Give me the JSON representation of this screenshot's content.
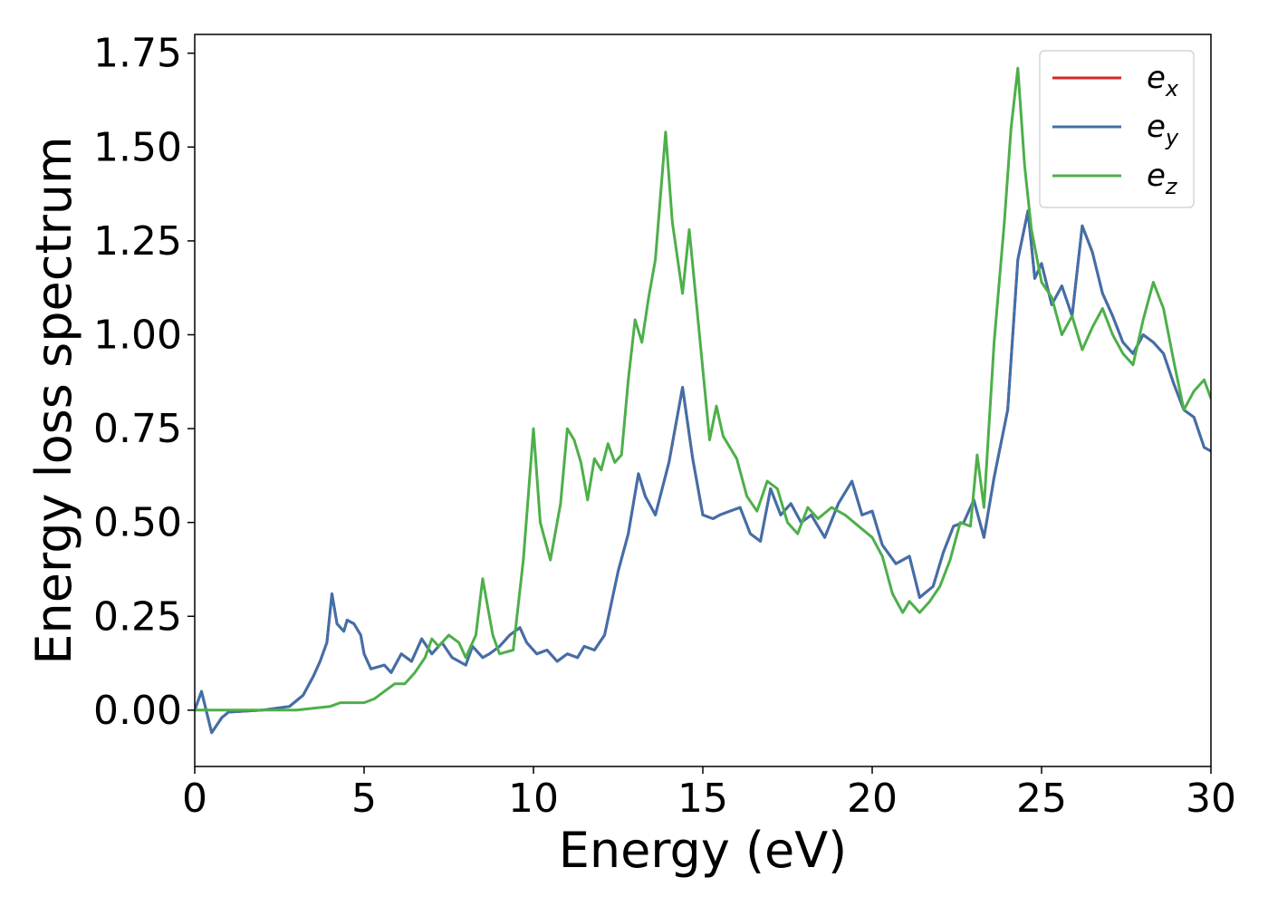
{
  "chart_data": {
    "type": "line",
    "xlabel": "Energy (eV)",
    "ylabel": "Energy loss spectrum",
    "xlim": [
      0,
      30
    ],
    "ylim": [
      -0.15,
      1.8
    ],
    "xticks": [
      0,
      5,
      10,
      15,
      20,
      25,
      30
    ],
    "xtick_labels": [
      "0",
      "5",
      "10",
      "15",
      "20",
      "25",
      "30"
    ],
    "yticks": [
      0.0,
      0.25,
      0.5,
      0.75,
      1.0,
      1.25,
      1.5,
      1.75
    ],
    "ytick_labels": [
      "0.00",
      "0.25",
      "0.50",
      "0.75",
      "1.00",
      "1.25",
      "1.50",
      "1.75"
    ],
    "grid": false,
    "legend_position": "top-right",
    "series": [
      {
        "name": "e",
        "subscript": "x",
        "color": "#d62728",
        "x": [
          0.0,
          0.2,
          0.5,
          0.8,
          1.0,
          2.0,
          2.8,
          3.2,
          3.5,
          3.7,
          3.9,
          4.05,
          4.2,
          4.4,
          4.5,
          4.7,
          4.9,
          5.0,
          5.2,
          5.6,
          5.8,
          6.1,
          6.4,
          6.7,
          7.0,
          7.3,
          7.6,
          8.0,
          8.2,
          8.5,
          8.7,
          9.0,
          9.3,
          9.6,
          9.8,
          10.1,
          10.4,
          10.7,
          11.0,
          11.3,
          11.5,
          11.8,
          12.1,
          12.5,
          12.8,
          13.1,
          13.3,
          13.6,
          14.0,
          14.4,
          14.7,
          15.0,
          15.3,
          15.5,
          15.8,
          16.1,
          16.4,
          16.7,
          17.0,
          17.3,
          17.6,
          17.9,
          18.2,
          18.6,
          19.0,
          19.4,
          19.7,
          20.0,
          20.3,
          20.7,
          21.1,
          21.4,
          21.8,
          22.1,
          22.4,
          22.7,
          23.0,
          23.3,
          23.6,
          24.0,
          24.3,
          24.6,
          24.8,
          25.0,
          25.3,
          25.6,
          25.9,
          26.2,
          26.5,
          26.8,
          27.1,
          27.4,
          27.7,
          28.0,
          28.3,
          28.6,
          28.9,
          29.2,
          29.5,
          29.8,
          30.0
        ],
        "y": [
          0.0,
          0.05,
          -0.06,
          -0.02,
          -0.005,
          0.0,
          0.01,
          0.04,
          0.09,
          0.13,
          0.18,
          0.31,
          0.23,
          0.21,
          0.24,
          0.23,
          0.2,
          0.15,
          0.11,
          0.12,
          0.1,
          0.15,
          0.13,
          0.19,
          0.15,
          0.18,
          0.14,
          0.12,
          0.17,
          0.14,
          0.15,
          0.17,
          0.2,
          0.22,
          0.18,
          0.15,
          0.16,
          0.13,
          0.15,
          0.14,
          0.17,
          0.16,
          0.2,
          0.37,
          0.47,
          0.63,
          0.57,
          0.52,
          0.66,
          0.86,
          0.67,
          0.52,
          0.51,
          0.52,
          0.53,
          0.54,
          0.47,
          0.45,
          0.59,
          0.52,
          0.55,
          0.5,
          0.52,
          0.46,
          0.55,
          0.61,
          0.52,
          0.53,
          0.44,
          0.39,
          0.41,
          0.3,
          0.33,
          0.42,
          0.49,
          0.5,
          0.56,
          0.46,
          0.62,
          0.8,
          1.2,
          1.33,
          1.15,
          1.19,
          1.08,
          1.13,
          1.05,
          1.29,
          1.22,
          1.11,
          1.05,
          0.98,
          0.95,
          1.0,
          0.98,
          0.95,
          0.87,
          0.8,
          0.78,
          0.7,
          0.69
        ]
      },
      {
        "name": "e",
        "subscript": "y",
        "color": "#3f70aa",
        "x": [
          0.0,
          0.2,
          0.5,
          0.8,
          1.0,
          2.0,
          2.8,
          3.2,
          3.5,
          3.7,
          3.9,
          4.05,
          4.2,
          4.4,
          4.5,
          4.7,
          4.9,
          5.0,
          5.2,
          5.6,
          5.8,
          6.1,
          6.4,
          6.7,
          7.0,
          7.3,
          7.6,
          8.0,
          8.2,
          8.5,
          8.7,
          9.0,
          9.3,
          9.6,
          9.8,
          10.1,
          10.4,
          10.7,
          11.0,
          11.3,
          11.5,
          11.8,
          12.1,
          12.5,
          12.8,
          13.1,
          13.3,
          13.6,
          14.0,
          14.4,
          14.7,
          15.0,
          15.3,
          15.5,
          15.8,
          16.1,
          16.4,
          16.7,
          17.0,
          17.3,
          17.6,
          17.9,
          18.2,
          18.6,
          19.0,
          19.4,
          19.7,
          20.0,
          20.3,
          20.7,
          21.1,
          21.4,
          21.8,
          22.1,
          22.4,
          22.7,
          23.0,
          23.3,
          23.6,
          24.0,
          24.3,
          24.6,
          24.8,
          25.0,
          25.3,
          25.6,
          25.9,
          26.2,
          26.5,
          26.8,
          27.1,
          27.4,
          27.7,
          28.0,
          28.3,
          28.6,
          28.9,
          29.2,
          29.5,
          29.8,
          30.0
        ],
        "y": [
          0.0,
          0.05,
          -0.06,
          -0.02,
          -0.005,
          0.0,
          0.01,
          0.04,
          0.09,
          0.13,
          0.18,
          0.31,
          0.23,
          0.21,
          0.24,
          0.23,
          0.2,
          0.15,
          0.11,
          0.12,
          0.1,
          0.15,
          0.13,
          0.19,
          0.15,
          0.18,
          0.14,
          0.12,
          0.17,
          0.14,
          0.15,
          0.17,
          0.2,
          0.22,
          0.18,
          0.15,
          0.16,
          0.13,
          0.15,
          0.14,
          0.17,
          0.16,
          0.2,
          0.37,
          0.47,
          0.63,
          0.57,
          0.52,
          0.66,
          0.86,
          0.67,
          0.52,
          0.51,
          0.52,
          0.53,
          0.54,
          0.47,
          0.45,
          0.59,
          0.52,
          0.55,
          0.5,
          0.52,
          0.46,
          0.55,
          0.61,
          0.52,
          0.53,
          0.44,
          0.39,
          0.41,
          0.3,
          0.33,
          0.42,
          0.49,
          0.5,
          0.56,
          0.46,
          0.62,
          0.8,
          1.2,
          1.33,
          1.15,
          1.19,
          1.08,
          1.13,
          1.05,
          1.29,
          1.22,
          1.11,
          1.05,
          0.98,
          0.95,
          1.0,
          0.98,
          0.95,
          0.87,
          0.8,
          0.78,
          0.7,
          0.69
        ]
      },
      {
        "name": "e",
        "subscript": "z",
        "color": "#4daf4a",
        "x": [
          0.0,
          1.0,
          2.0,
          3.0,
          3.5,
          4.0,
          4.3,
          4.6,
          5.0,
          5.3,
          5.6,
          5.9,
          6.2,
          6.5,
          6.8,
          7.0,
          7.2,
          7.5,
          7.8,
          8.0,
          8.3,
          8.5,
          8.8,
          9.0,
          9.4,
          9.7,
          10.0,
          10.2,
          10.5,
          10.8,
          11.0,
          11.2,
          11.4,
          11.6,
          11.8,
          12.0,
          12.2,
          12.4,
          12.6,
          12.8,
          13.0,
          13.2,
          13.4,
          13.6,
          13.9,
          14.1,
          14.4,
          14.6,
          14.9,
          15.2,
          15.4,
          15.6,
          16.0,
          16.3,
          16.6,
          16.9,
          17.2,
          17.5,
          17.8,
          18.1,
          18.4,
          18.8,
          19.2,
          19.6,
          20.0,
          20.3,
          20.6,
          20.9,
          21.1,
          21.4,
          21.7,
          22.0,
          22.3,
          22.6,
          22.9,
          23.1,
          23.3,
          23.6,
          23.9,
          24.1,
          24.3,
          24.5,
          24.7,
          25.0,
          25.3,
          25.6,
          25.9,
          26.2,
          26.5,
          26.8,
          27.1,
          27.4,
          27.7,
          28.0,
          28.3,
          28.6,
          28.9,
          29.2,
          29.5,
          29.8,
          30.0
        ],
        "y": [
          0.0,
          0.0,
          0.0,
          0.0,
          0.005,
          0.01,
          0.02,
          0.02,
          0.02,
          0.03,
          0.05,
          0.07,
          0.07,
          0.1,
          0.14,
          0.19,
          0.17,
          0.2,
          0.18,
          0.14,
          0.2,
          0.35,
          0.2,
          0.15,
          0.16,
          0.4,
          0.75,
          0.5,
          0.4,
          0.55,
          0.75,
          0.72,
          0.66,
          0.56,
          0.67,
          0.64,
          0.71,
          0.66,
          0.68,
          0.88,
          1.04,
          0.98,
          1.1,
          1.2,
          1.54,
          1.3,
          1.11,
          1.28,
          1.0,
          0.72,
          0.81,
          0.73,
          0.67,
          0.57,
          0.53,
          0.61,
          0.59,
          0.5,
          0.47,
          0.54,
          0.51,
          0.54,
          0.52,
          0.49,
          0.46,
          0.41,
          0.31,
          0.26,
          0.29,
          0.26,
          0.29,
          0.33,
          0.4,
          0.5,
          0.49,
          0.68,
          0.54,
          0.98,
          1.3,
          1.55,
          1.71,
          1.45,
          1.28,
          1.14,
          1.1,
          1.0,
          1.05,
          0.96,
          1.02,
          1.07,
          1.0,
          0.95,
          0.92,
          1.04,
          1.14,
          1.07,
          0.93,
          0.8,
          0.85,
          0.88,
          0.83
        ]
      }
    ]
  }
}
